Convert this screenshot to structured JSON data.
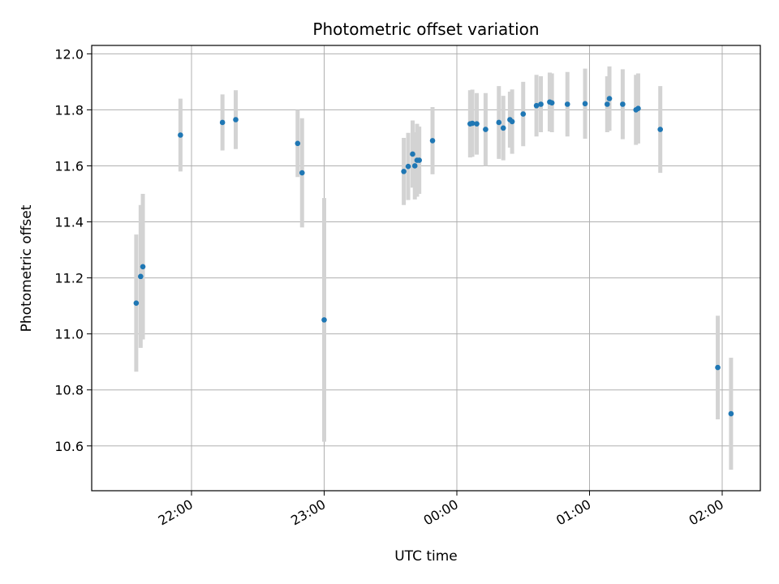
{
  "chart_data": {
    "type": "scatter",
    "title": "Photometric offset variation",
    "xlabel": "UTC time",
    "ylabel": "Photometric offset",
    "x_scale": "time",
    "x_ticks": [
      "22:00",
      "23:00",
      "00:00",
      "01:00",
      "02:00"
    ],
    "x_range": [
      "21:15",
      "02:30"
    ],
    "y_ticks": [
      "10.6",
      "10.8",
      "11.0",
      "11.2",
      "11.4",
      "11.6",
      "11.8",
      "12.0"
    ],
    "ylim": [
      10.44,
      12.03
    ],
    "grid": true,
    "colors": {
      "point": "#1f77b4",
      "errorbar": "#d3d3d3"
    },
    "series": [
      {
        "points": [
          {
            "x": "21:35",
            "y": 11.11,
            "err": 0.245
          },
          {
            "x": "21:37",
            "y": 11.205,
            "err": 0.255
          },
          {
            "x": "21:38",
            "y": 11.24,
            "err": 0.26
          },
          {
            "x": "21:55",
            "y": 11.71,
            "err": 0.13
          },
          {
            "x": "22:14",
            "y": 11.755,
            "err": 0.1
          },
          {
            "x": "22:20",
            "y": 11.765,
            "err": 0.105
          },
          {
            "x": "22:48",
            "y": 11.68,
            "err": 0.12
          },
          {
            "x": "22:50",
            "y": 11.575,
            "err": 0.195
          },
          {
            "x": "23:00",
            "y": 11.05,
            "err": 0.435
          },
          {
            "x": "23:36",
            "y": 11.58,
            "err": 0.12
          },
          {
            "x": "23:38",
            "y": 11.598,
            "err": 0.12
          },
          {
            "x": "23:40",
            "y": 11.642,
            "err": 0.12
          },
          {
            "x": "23:41",
            "y": 11.6,
            "err": 0.12
          },
          {
            "x": "23:42",
            "y": 11.62,
            "err": 0.13
          },
          {
            "x": "23:43",
            "y": 11.62,
            "err": 0.12
          },
          {
            "x": "23:49",
            "y": 11.69,
            "err": 0.12
          },
          {
            "x": "00:06",
            "y": 11.75,
            "err": 0.12
          },
          {
            "x": "00:07",
            "y": 11.752,
            "err": 0.12
          },
          {
            "x": "00:09",
            "y": 11.75,
            "err": 0.11
          },
          {
            "x": "00:13",
            "y": 11.73,
            "err": 0.13
          },
          {
            "x": "00:19",
            "y": 11.755,
            "err": 0.13
          },
          {
            "x": "00:21",
            "y": 11.735,
            "err": 0.115
          },
          {
            "x": "00:24",
            "y": 11.765,
            "err": 0.1
          },
          {
            "x": "00:25",
            "y": 11.758,
            "err": 0.115
          },
          {
            "x": "00:30",
            "y": 11.785,
            "err": 0.115
          },
          {
            "x": "00:36",
            "y": 11.815,
            "err": 0.11
          },
          {
            "x": "00:38",
            "y": 11.82,
            "err": 0.1
          },
          {
            "x": "00:42",
            "y": 11.828,
            "err": 0.105
          },
          {
            "x": "00:43",
            "y": 11.825,
            "err": 0.105
          },
          {
            "x": "00:50",
            "y": 11.82,
            "err": 0.115
          },
          {
            "x": "00:58",
            "y": 11.822,
            "err": 0.125
          },
          {
            "x": "01:08",
            "y": 11.82,
            "err": 0.1
          },
          {
            "x": "01:09",
            "y": 11.84,
            "err": 0.115
          },
          {
            "x": "01:15",
            "y": 11.82,
            "err": 0.125
          },
          {
            "x": "01:21",
            "y": 11.8,
            "err": 0.125
          },
          {
            "x": "01:22",
            "y": 11.805,
            "err": 0.125
          },
          {
            "x": "01:32",
            "y": 11.73,
            "err": 0.155
          },
          {
            "x": "01:58",
            "y": 10.88,
            "err": 0.185
          },
          {
            "x": "02:04",
            "y": 10.715,
            "err": 0.2
          }
        ]
      }
    ]
  }
}
